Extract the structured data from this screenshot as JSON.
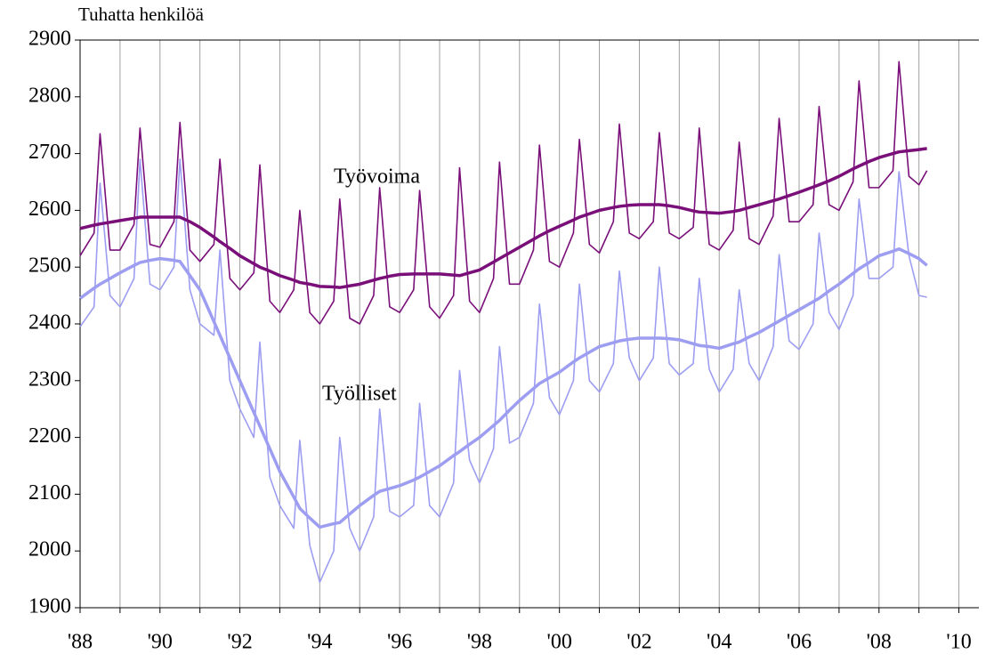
{
  "chart_data": {
    "type": "line",
    "title": "Tuhatta henkilöä",
    "x": [
      1988,
      1988.35,
      1988.5,
      1988.75,
      1989,
      1989.35,
      1989.5,
      1989.75,
      1990,
      1990.35,
      1990.5,
      1990.75,
      1991,
      1991.35,
      1991.5,
      1991.75,
      1992,
      1992.35,
      1992.5,
      1992.75,
      1993,
      1993.35,
      1993.5,
      1993.75,
      1994,
      1994.35,
      1994.5,
      1994.75,
      1995,
      1995.35,
      1995.5,
      1995.75,
      1996,
      1996.35,
      1996.5,
      1996.75,
      1997,
      1997.35,
      1997.5,
      1997.75,
      1998,
      1998.35,
      1998.5,
      1998.75,
      1999,
      1999.35,
      1999.5,
      1999.75,
      2000,
      2000.35,
      2000.5,
      2000.75,
      2001,
      2001.35,
      2001.5,
      2001.75,
      2002,
      2002.35,
      2002.5,
      2002.75,
      2003,
      2003.35,
      2003.5,
      2003.75,
      2004,
      2004.35,
      2004.5,
      2004.75,
      2005,
      2005.35,
      2005.5,
      2005.75,
      2006,
      2006.35,
      2006.5,
      2006.75,
      2007,
      2007.35,
      2007.5,
      2007.75,
      2008,
      2008.35,
      2008.5,
      2008.75,
      2009,
      2009.2
    ],
    "series": [
      {
        "name": "Työvoima",
        "color": "#7a0f7a",
        "width": 1.6,
        "values": [
          2520,
          2560,
          2735,
          2530,
          2530,
          2575,
          2745,
          2540,
          2535,
          2580,
          2755,
          2530,
          2510,
          2540,
          2690,
          2480,
          2460,
          2490,
          2680,
          2440,
          2420,
          2460,
          2600,
          2420,
          2400,
          2440,
          2620,
          2410,
          2400,
          2450,
          2640,
          2430,
          2420,
          2460,
          2635,
          2430,
          2410,
          2450,
          2675,
          2440,
          2420,
          2480,
          2685,
          2470,
          2470,
          2530,
          2715,
          2510,
          2500,
          2560,
          2725,
          2540,
          2525,
          2580,
          2752,
          2560,
          2550,
          2580,
          2737,
          2560,
          2550,
          2570,
          2745,
          2540,
          2530,
          2565,
          2720,
          2550,
          2540,
          2590,
          2762,
          2580,
          2580,
          2610,
          2783,
          2610,
          2600,
          2650,
          2828,
          2640,
          2640,
          2670,
          2862,
          2660,
          2645,
          2670
        ]
      },
      {
        "color": "#7a0f7a",
        "width": 3.5,
        "values": [
          2568,
          2574,
          2576,
          2579,
          2582,
          2586,
          2588,
          2588,
          2588,
          2588,
          2588,
          2580,
          2570,
          2553,
          2545,
          2533,
          2520,
          2506,
          2500,
          2493,
          2485,
          2477,
          2473,
          2470,
          2466,
          2465,
          2464,
          2467,
          2470,
          2477,
          2480,
          2484,
          2487,
          2488,
          2488,
          2488,
          2488,
          2486,
          2485,
          2490,
          2495,
          2509,
          2515,
          2525,
          2535,
          2549,
          2555,
          2564,
          2572,
          2583,
          2588,
          2594,
          2600,
          2605,
          2607,
          2609,
          2610,
          2610,
          2610,
          2608,
          2605,
          2599,
          2597,
          2596,
          2595,
          2598,
          2600,
          2605,
          2610,
          2617,
          2620,
          2626,
          2632,
          2641,
          2645,
          2652,
          2660,
          2673,
          2678,
          2686,
          2693,
          2700,
          2703,
          2705,
          2707,
          2709
        ]
      },
      {
        "name": "Työlliset",
        "color": "#9d9df2",
        "width": 1.6,
        "values": [
          2395,
          2430,
          2648,
          2450,
          2430,
          2480,
          2690,
          2470,
          2460,
          2500,
          2690,
          2460,
          2400,
          2380,
          2530,
          2300,
          2250,
          2200,
          2368,
          2130,
          2080,
          2040,
          2195,
          2010,
          1945,
          2000,
          2200,
          2040,
          2000,
          2060,
          2250,
          2070,
          2060,
          2080,
          2260,
          2080,
          2060,
          2120,
          2318,
          2160,
          2120,
          2180,
          2360,
          2190,
          2200,
          2260,
          2435,
          2270,
          2240,
          2300,
          2470,
          2300,
          2280,
          2330,
          2493,
          2340,
          2300,
          2340,
          2500,
          2330,
          2310,
          2330,
          2480,
          2320,
          2280,
          2320,
          2460,
          2330,
          2300,
          2360,
          2522,
          2370,
          2355,
          2400,
          2560,
          2420,
          2390,
          2450,
          2620,
          2480,
          2480,
          2500,
          2668,
          2520,
          2450,
          2447
        ]
      },
      {
        "color": "#9d9df2",
        "width": 3.5,
        "values": [
          2445,
          2463,
          2470,
          2480,
          2490,
          2503,
          2508,
          2512,
          2515,
          2512,
          2510,
          2485,
          2460,
          2404,
          2380,
          2340,
          2300,
          2244,
          2220,
          2180,
          2140,
          2095,
          2075,
          2058,
          2042,
          2048,
          2050,
          2065,
          2080,
          2098,
          2105,
          2110,
          2115,
          2125,
          2130,
          2140,
          2150,
          2168,
          2175,
          2188,
          2200,
          2221,
          2230,
          2248,
          2265,
          2286,
          2295,
          2305,
          2315,
          2333,
          2340,
          2350,
          2360,
          2367,
          2370,
          2373,
          2375,
          2375,
          2375,
          2374,
          2372,
          2365,
          2362,
          2360,
          2357,
          2365,
          2368,
          2377,
          2385,
          2399,
          2405,
          2415,
          2425,
          2439,
          2445,
          2458,
          2470,
          2489,
          2497,
          2508,
          2520,
          2528,
          2532,
          2524,
          2515,
          2503
        ]
      }
    ],
    "xlim": [
      1988,
      2010.5
    ],
    "xticks": [
      {
        "value": 1988,
        "label": "'88"
      },
      {
        "value": 1990,
        "label": "'90"
      },
      {
        "value": 1992,
        "label": "'92"
      },
      {
        "value": 1994,
        "label": "'94"
      },
      {
        "value": 1996,
        "label": "'96"
      },
      {
        "value": 1998,
        "label": "'98"
      },
      {
        "value": 2000,
        "label": "'00"
      },
      {
        "value": 2002,
        "label": "'02"
      },
      {
        "value": 2004,
        "label": "'04"
      },
      {
        "value": 2006,
        "label": "'06"
      },
      {
        "value": 2008,
        "label": "'08"
      },
      {
        "value": 2010,
        "label": "'10"
      }
    ],
    "x_gridlines": [
      1988,
      1989,
      1990,
      1991,
      1992,
      1993,
      1994,
      1995,
      1996,
      1997,
      1998,
      1999,
      2000,
      2001,
      2002,
      2003,
      2004,
      2005,
      2006,
      2007,
      2008,
      2009,
      2010
    ],
    "ylim": [
      1900,
      2900
    ],
    "yticks": [
      1900,
      2000,
      2100,
      2200,
      2300,
      2400,
      2500,
      2600,
      2700,
      2800,
      2900
    ]
  }
}
